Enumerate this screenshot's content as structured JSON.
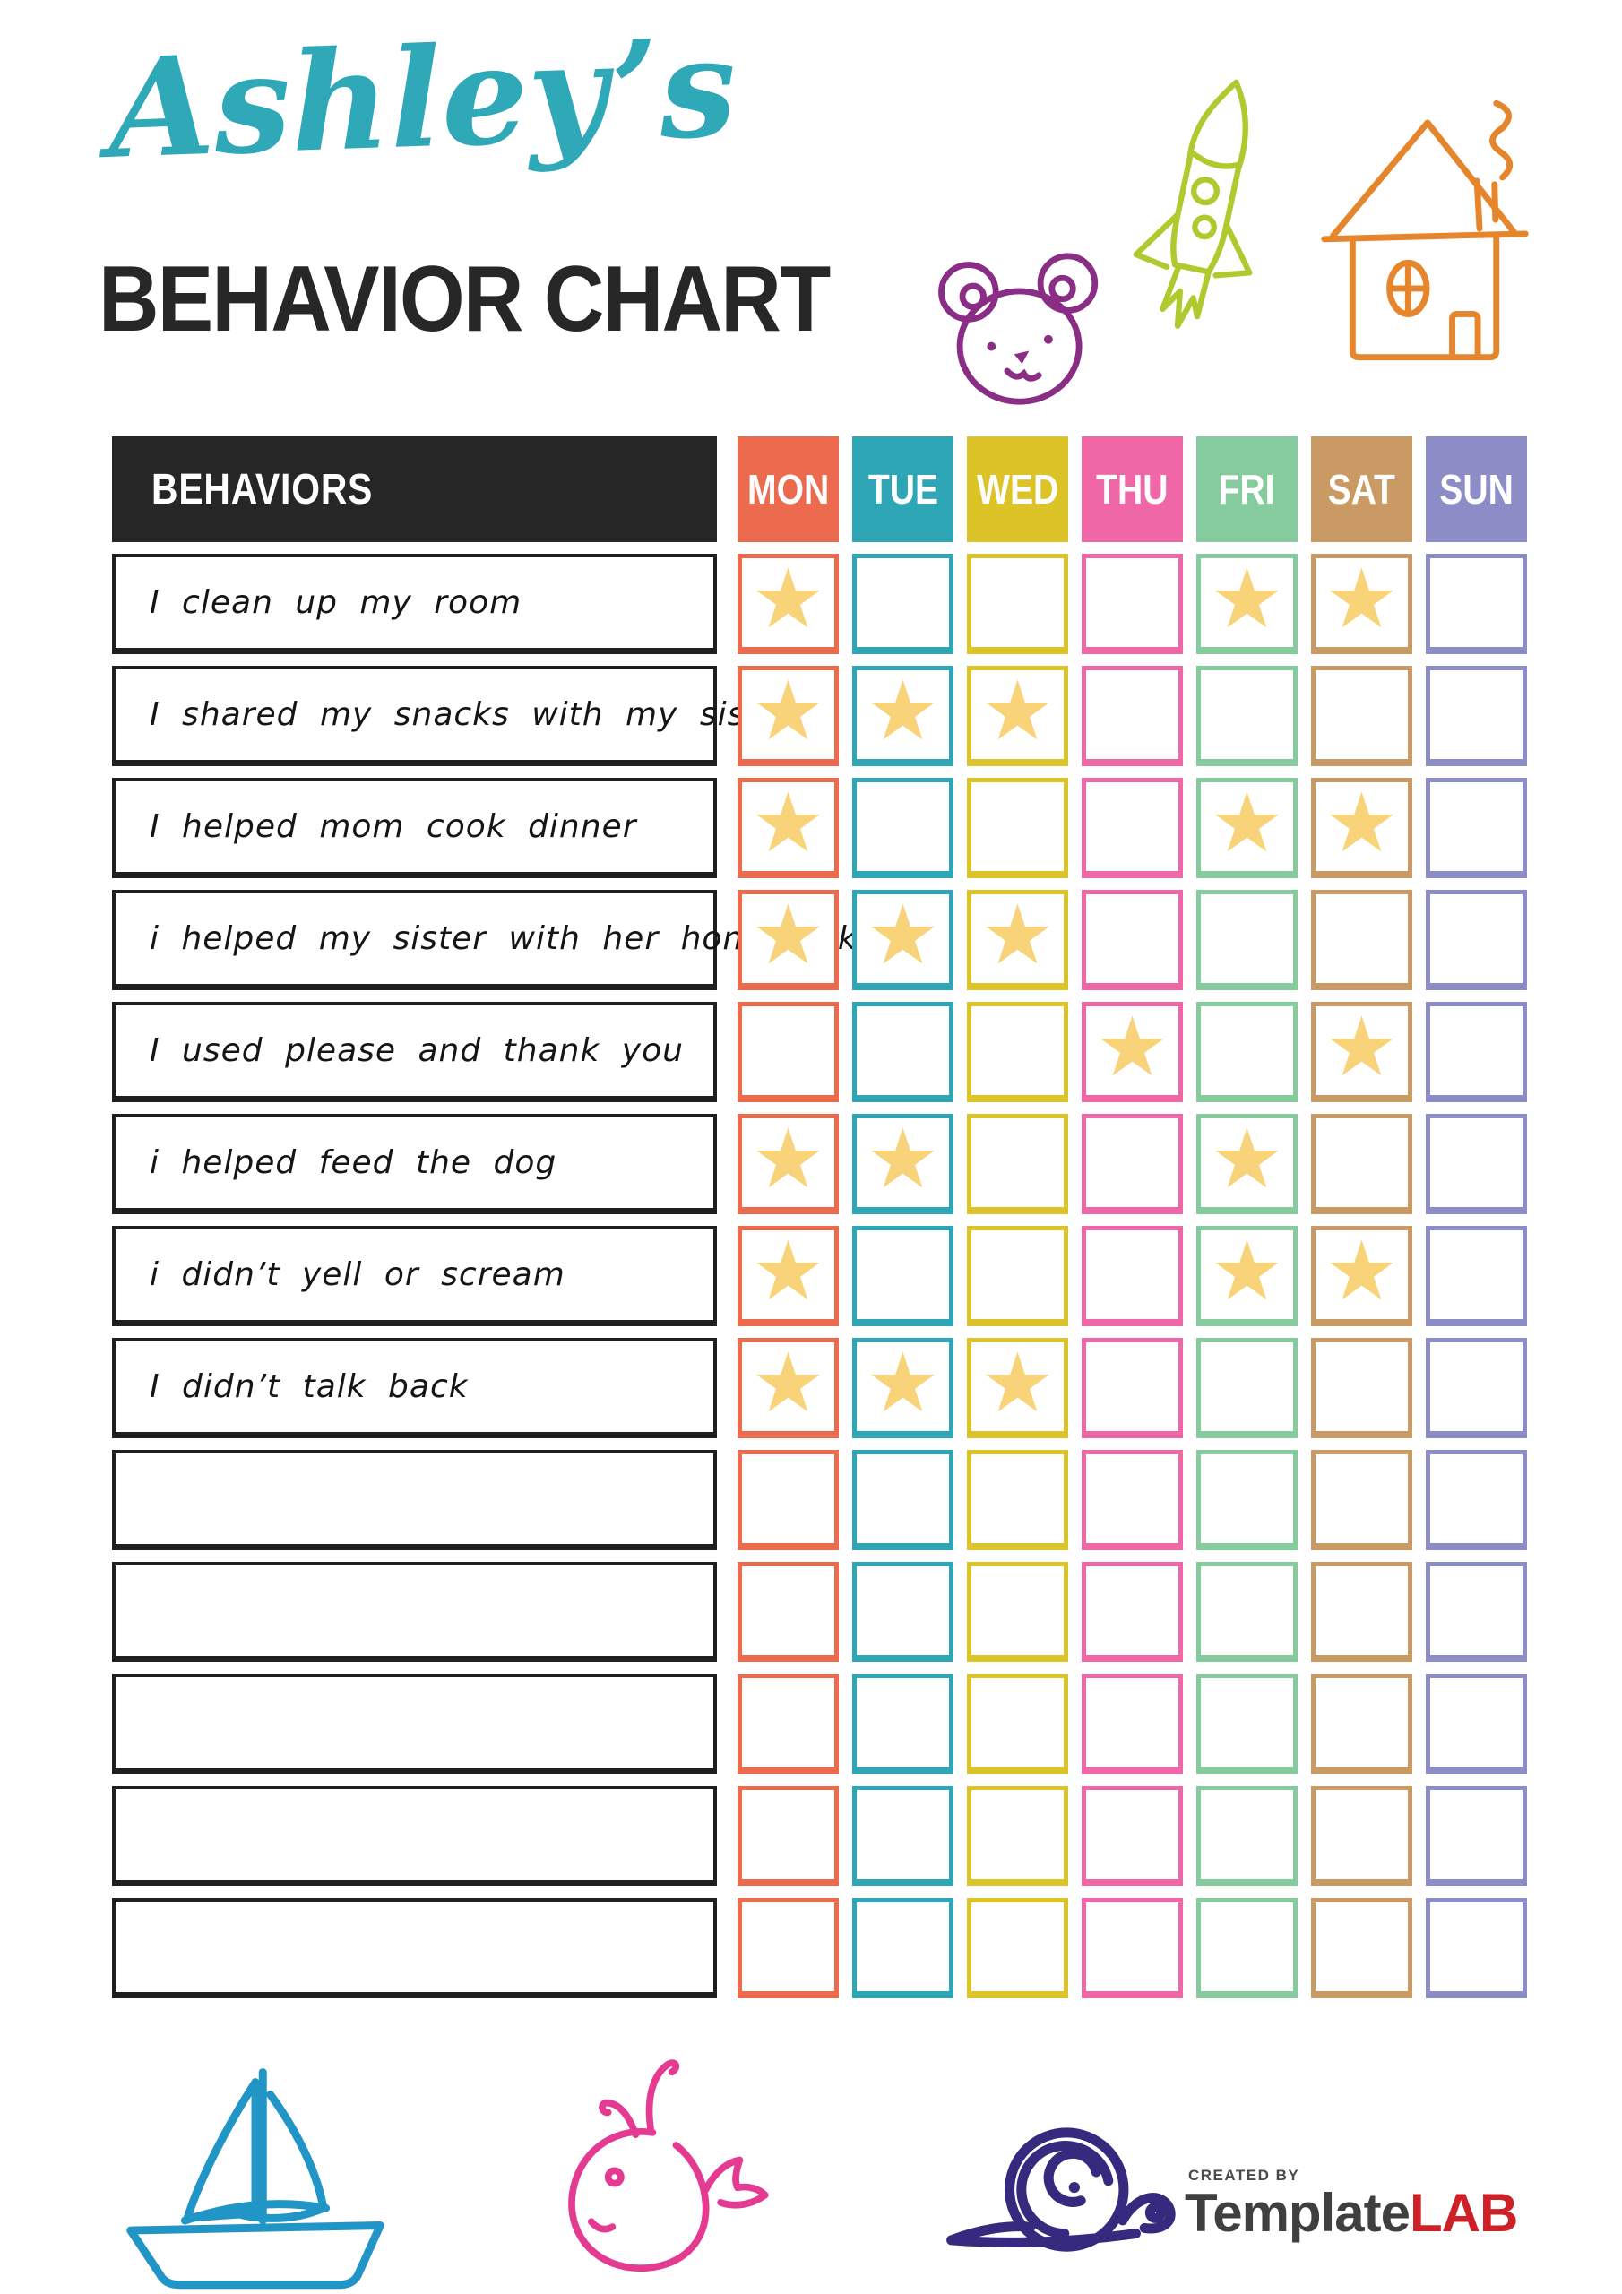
{
  "header": {
    "name_script": "Ashley’s",
    "title": "BEHAVIOR CHART",
    "script_color": "#2fa8b8",
    "title_color": "#272727"
  },
  "table": {
    "behaviors_header": "BEHAVIORS",
    "header_bg": "#262626",
    "star_glyph": "★",
    "star_color": "#f8d37a",
    "days": [
      {
        "label": "MON",
        "color": "#ec6a4d"
      },
      {
        "label": "TUE",
        "color": "#2fa6b6"
      },
      {
        "label": "WED",
        "color": "#dcc328"
      },
      {
        "label": "THU",
        "color": "#ef67a7"
      },
      {
        "label": "FRI",
        "color": "#85cb9d"
      },
      {
        "label": "SAT",
        "color": "#c99a63"
      },
      {
        "label": "SUN",
        "color": "#8c8cc7"
      }
    ],
    "rows": [
      {
        "behavior": "I clean up my room",
        "stars": [
          0,
          4,
          5
        ]
      },
      {
        "behavior": "I shared my snacks with my sister",
        "stars": [
          0,
          1,
          2
        ]
      },
      {
        "behavior": "I helped mom cook dinner",
        "stars": [
          0,
          4,
          5
        ]
      },
      {
        "behavior": "i helped my sister with her homework",
        "stars": [
          0,
          1,
          2
        ]
      },
      {
        "behavior": "I used please and thank you",
        "stars": [
          3,
          5
        ]
      },
      {
        "behavior": "i helped feed the dog",
        "stars": [
          0,
          1,
          4
        ]
      },
      {
        "behavior": "i didn’t yell or scream",
        "stars": [
          0,
          4,
          5
        ]
      },
      {
        "behavior": "I didn’t talk back",
        "stars": [
          0,
          1,
          2
        ]
      },
      {
        "behavior": "",
        "stars": []
      },
      {
        "behavior": "",
        "stars": []
      },
      {
        "behavior": "",
        "stars": []
      },
      {
        "behavior": "",
        "stars": []
      },
      {
        "behavior": "",
        "stars": []
      }
    ]
  },
  "doodles": {
    "bear_color": "#8a2d85",
    "rocket_color": "#aeca2e",
    "house_color": "#e5852c",
    "sailboat_color": "#2295c7",
    "whale_color": "#e43a92",
    "snail_color": "#352a7e"
  },
  "footer": {
    "created_by": "CREATED BY",
    "brand_primary": "Template",
    "brand_accent": "LAB",
    "brand_primary_color": "#3f3f3f",
    "brand_accent_color": "#ce2127"
  }
}
